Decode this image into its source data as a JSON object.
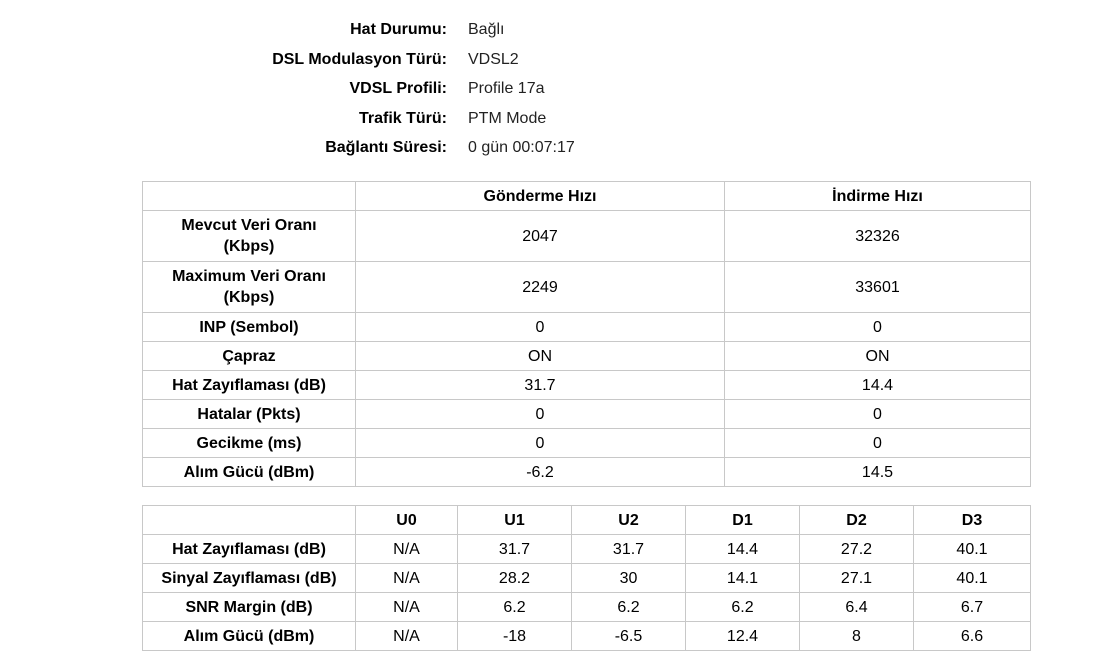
{
  "status": [
    {
      "label": "Hat Durumu:",
      "value": "Bağlı"
    },
    {
      "label": "DSL Modulasyon Türü:",
      "value": "VDSL2"
    },
    {
      "label": "VDSL Profili:",
      "value": "Profile 17a"
    },
    {
      "label": "Trafik Türü:",
      "value": "PTM Mode"
    },
    {
      "label": "Bağlantı Süresi:",
      "value": "0 gün 00:07:17"
    }
  ],
  "rate_table": {
    "columns": [
      "Gönderme Hızı",
      "İndirme Hızı"
    ],
    "rows": [
      {
        "label": "Mevcut Veri Oranı (Kbps)",
        "values": [
          2047,
          32326
        ]
      },
      {
        "label": "Maximum Veri Oranı (Kbps)",
        "values": [
          2249,
          33601
        ]
      },
      {
        "label": "INP (Sembol)",
        "values": [
          0,
          0
        ]
      },
      {
        "label": "Çapraz",
        "values": [
          "ON",
          "ON"
        ]
      },
      {
        "label": "Hat Zayıflaması (dB)",
        "values": [
          31.7,
          14.4
        ]
      },
      {
        "label": "Hatalar (Pkts)",
        "values": [
          0,
          0
        ]
      },
      {
        "label": "Gecikme (ms)",
        "values": [
          0,
          0
        ]
      },
      {
        "label": "Alım Gücü (dBm)",
        "values": [
          -6.2,
          14.5
        ]
      }
    ]
  },
  "band_table": {
    "columns": [
      "U0",
      "U1",
      "U2",
      "D1",
      "D2",
      "D3"
    ],
    "rows": [
      {
        "label": "Hat Zayıflaması (dB)",
        "values": [
          "N/A",
          31.7,
          31.7,
          14.4,
          27.2,
          40.1
        ]
      },
      {
        "label": "Sinyal Zayıflaması (dB)",
        "values": [
          "N/A",
          28.2,
          30,
          14.1,
          27.1,
          40.1
        ]
      },
      {
        "label": "SNR Margin (dB)",
        "values": [
          "N/A",
          6.2,
          6.2,
          6.2,
          6.4,
          6.7
        ]
      },
      {
        "label": "Alım Gücü (dBm)",
        "values": [
          "N/A",
          -18,
          -6.5,
          12.4,
          8,
          6.6
        ]
      }
    ]
  }
}
